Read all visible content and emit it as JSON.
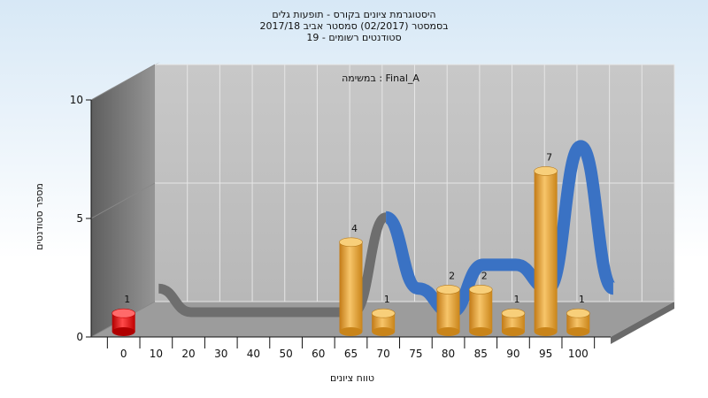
{
  "title_lines": [
    "היסטוגרמת ציונים בקורס - תופעות גלים",
    "בסמסטר  (02/2017)  סמסטר אביב 2017/18",
    "סטודנטים רשומים - 19"
  ],
  "chart_data": {
    "type": "bar",
    "title": "היסטוגרמת ציונים בקורס - תופעות גלים",
    "subtitle": "בסמסטר  (02/2017)  סמסטר אביב 2017/18 — סטודנטים רשומים - 19",
    "annotation": "במשימה : Final_A",
    "xlabel": "טווח ציונים",
    "ylabel": "מספר סטודנטים",
    "ylim": [
      0,
      10
    ],
    "yticks": [
      0,
      5,
      10
    ],
    "categories": [
      "0",
      "10",
      "20",
      "30",
      "40",
      "50",
      "60",
      "65",
      "70",
      "75",
      "80",
      "85",
      "90",
      "95",
      "100"
    ],
    "values": [
      1,
      0,
      0,
      0,
      0,
      0,
      0,
      4,
      1,
      0,
      2,
      2,
      1,
      7,
      1
    ],
    "bar_labels": [
      "1",
      "",
      "",
      "",
      "",
      "",
      "",
      "4",
      "1",
      "",
      "2",
      "2",
      "1",
      "7",
      "1"
    ],
    "grid": true,
    "colors": {
      "first_bar": "#e01010",
      "bar": "#f0a93a",
      "ribbon_front": "#3a72c4",
      "ribbon_shadow": "#6e6e6e"
    }
  }
}
